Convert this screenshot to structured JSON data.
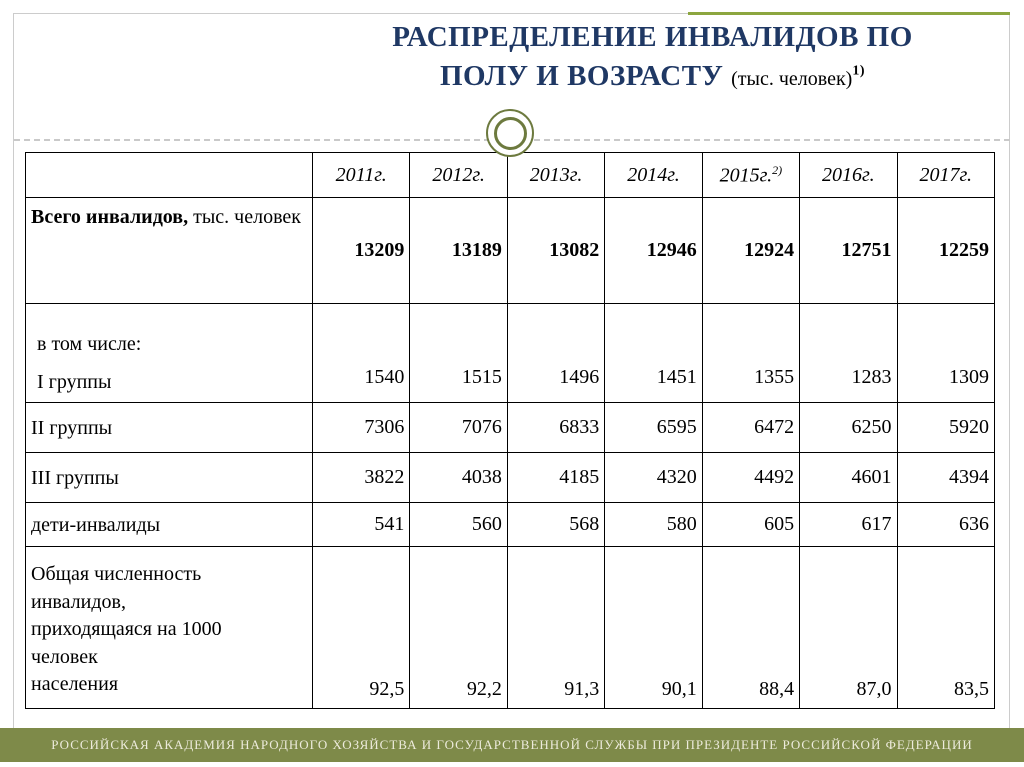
{
  "title": {
    "line1": "РАСПРЕДЕЛЕНИЕ ИНВАЛИДОВ ПО",
    "line2": "ПОЛУ И ВОЗРАСТУ ",
    "unit": "(тыс. человек)",
    "unit_note": "1)"
  },
  "table": {
    "years": [
      "2011г.",
      "2012г.",
      "2013г.",
      "2014г.",
      "2015г.",
      "2016г.",
      "2017г."
    ],
    "year_2015_note": "2)",
    "rows": {
      "total": {
        "label_bold": "Всего инвалидов,",
        "label_rest": " тыс. человек",
        "values": [
          "13209",
          "13189",
          "13082",
          "12946",
          "12924",
          "12751",
          "12259"
        ]
      },
      "group1": {
        "intro": "в том числе:",
        "label": "I группы",
        "values": [
          "1540",
          "1515",
          "1496",
          "1451",
          "1355",
          "1283",
          "1309"
        ]
      },
      "group2": {
        "label": "II группы",
        "values": [
          "7306",
          "7076",
          "6833",
          "6595",
          "6472",
          "6250",
          "5920"
        ]
      },
      "group3": {
        "label": "III группы",
        "values": [
          "3822",
          "4038",
          "4185",
          "4320",
          "4492",
          "4601",
          "4394"
        ]
      },
      "children": {
        "label": "дети-инвалиды",
        "values": [
          "541",
          "560",
          "568",
          "580",
          "605",
          "617",
          "636"
        ]
      },
      "per1000": {
        "label": "Общая численность\nинвалидов,\nприходящаяся на 1000\nчеловек\nнаселения",
        "values": [
          "92,5",
          "92,2",
          "91,3",
          "90,1",
          "88,4",
          "87,0",
          "83,5"
        ]
      }
    }
  },
  "footer": {
    "text": "РОССИЙСКАЯ АКАДЕМИЯ НАРОДНОГО ХОЗЯЙСТВА И ГОСУДАРСТВЕННОЙ СЛУЖБЫ ПРИ ПРЕЗИДЕНТЕ РОССИЙСКОЙ ФЕДЕРАЦИИ"
  },
  "colors": {
    "title_navy": "#1F3864",
    "accent_olive": "#7E8A49",
    "accent_line_green": "#8CA63F",
    "footer_text": "#EDEBDC"
  }
}
